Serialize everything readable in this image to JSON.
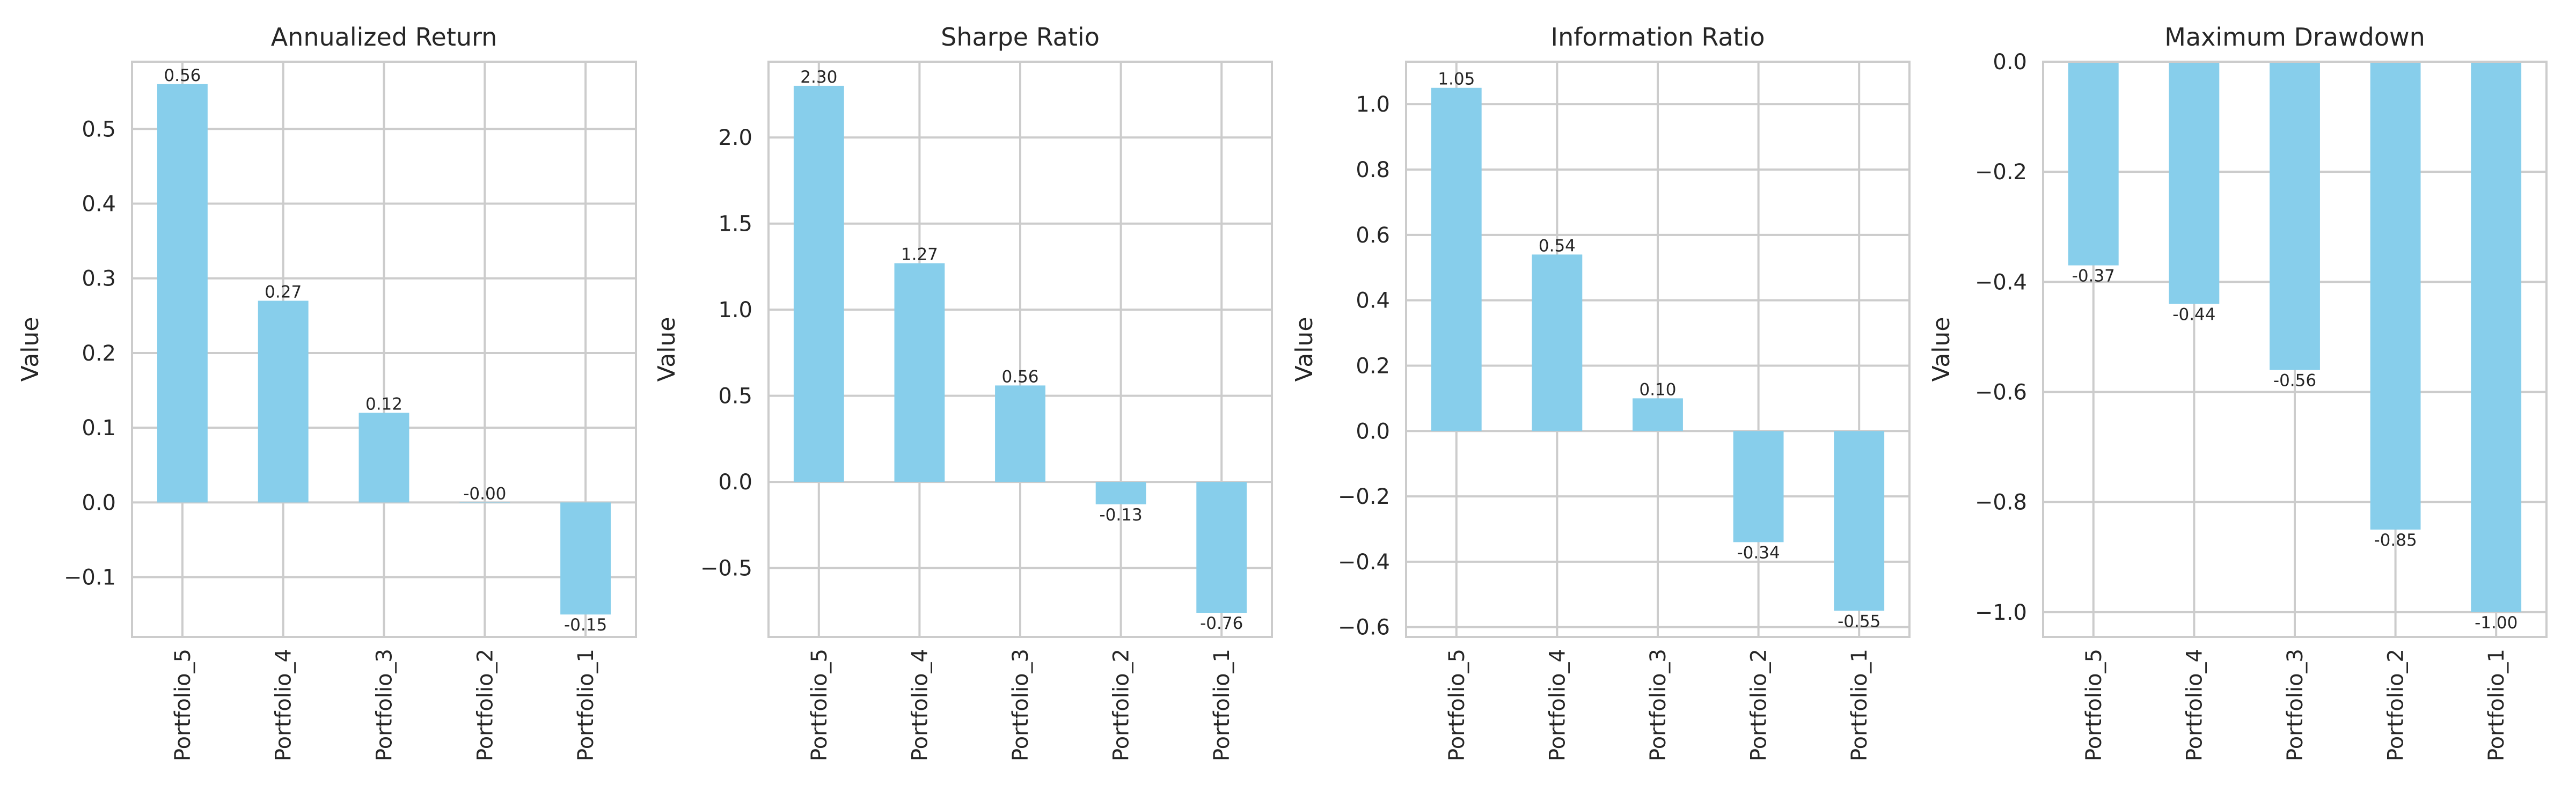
{
  "chart_data": [
    {
      "type": "bar",
      "title": "Annualized Return",
      "ylabel": "Value",
      "xlabel": "",
      "categories": [
        "Portfolio_5",
        "Portfolio_4",
        "Portfolio_3",
        "Portfolio_2",
        "Portfolio_1"
      ],
      "values": [
        0.56,
        0.27,
        0.12,
        -0.0,
        -0.15
      ],
      "labels": [
        "0.56",
        "0.27",
        "0.12",
        "-0.00",
        "-0.15"
      ],
      "ylim": [
        -0.18,
        0.59
      ],
      "yticks": [
        -0.1,
        0.0,
        0.1,
        0.2,
        0.3,
        0.4,
        0.5
      ],
      "ytick_labels": [
        "−0.1",
        "0.0",
        "0.1",
        "0.2",
        "0.3",
        "0.4",
        "0.5"
      ],
      "grid": true,
      "bar_color": "#87CEEB"
    },
    {
      "type": "bar",
      "title": "Sharpe Ratio",
      "ylabel": "Value",
      "xlabel": "",
      "categories": [
        "Portfolio_5",
        "Portfolio_4",
        "Portfolio_3",
        "Portfolio_2",
        "Portfolio_1"
      ],
      "values": [
        2.3,
        1.27,
        0.56,
        -0.13,
        -0.76
      ],
      "labels": [
        "2.30",
        "1.27",
        "0.56",
        "-0.13",
        "-0.76"
      ],
      "ylim": [
        -0.9,
        2.44
      ],
      "yticks": [
        -0.5,
        0.0,
        0.5,
        1.0,
        1.5,
        2.0
      ],
      "ytick_labels": [
        "−0.5",
        "0.0",
        "0.5",
        "1.0",
        "1.5",
        "2.0"
      ],
      "grid": true,
      "bar_color": "#87CEEB"
    },
    {
      "type": "bar",
      "title": "Information Ratio",
      "ylabel": "Value",
      "xlabel": "",
      "categories": [
        "Portfolio_5",
        "Portfolio_4",
        "Portfolio_3",
        "Portfolio_2",
        "Portfolio_1"
      ],
      "values": [
        1.05,
        0.54,
        0.1,
        -0.34,
        -0.55
      ],
      "labels": [
        "1.05",
        "0.54",
        "0.10",
        "-0.34",
        "-0.55"
      ],
      "ylim": [
        -0.63,
        1.13
      ],
      "yticks": [
        -0.6,
        -0.4,
        -0.2,
        0.0,
        0.2,
        0.4,
        0.6,
        0.8,
        1.0
      ],
      "ytick_labels": [
        "−0.6",
        "−0.4",
        "−0.2",
        "0.0",
        "0.2",
        "0.4",
        "0.6",
        "0.8",
        "1.0"
      ],
      "grid": true,
      "bar_color": "#87CEEB"
    },
    {
      "type": "bar",
      "title": "Maximum Drawdown",
      "ylabel": "Value",
      "xlabel": "",
      "categories": [
        "Portfolio_5",
        "Portfolio_4",
        "Portfolio_3",
        "Portfolio_2",
        "Portfolio_1"
      ],
      "values": [
        -0.37,
        -0.44,
        -0.56,
        -0.85,
        -1.0
      ],
      "labels": [
        "-0.37",
        "-0.44",
        "-0.56",
        "-0.85",
        "-1.00"
      ],
      "ylim": [
        -1.045,
        0.0
      ],
      "yticks": [
        -1.0,
        -0.8,
        -0.6,
        -0.4,
        -0.2,
        0.0
      ],
      "ytick_labels": [
        "−1.0",
        "−0.8",
        "−0.6",
        "−0.4",
        "−0.2",
        "0.0"
      ],
      "grid": true,
      "bar_color": "#87CEEB"
    }
  ]
}
